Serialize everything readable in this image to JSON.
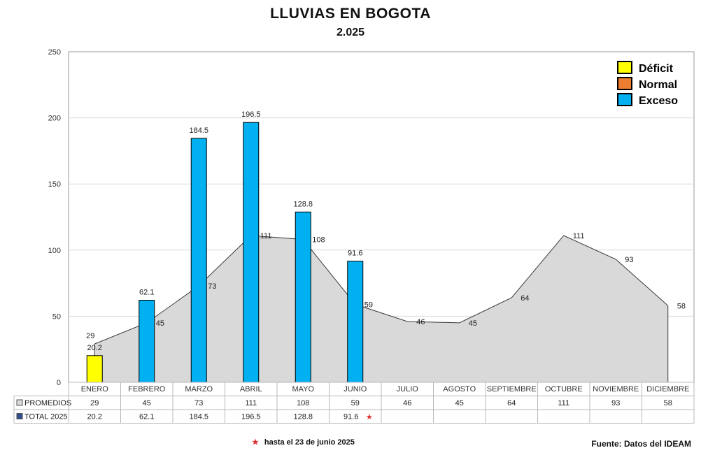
{
  "chart_data": {
    "type": "bar",
    "title": "LLUVIAS EN BOGOTA",
    "subtitle": "2.025",
    "categories": [
      "ENERO",
      "FEBRERO",
      "MARZO",
      "ABRIL",
      "MAYO",
      "JUNIO",
      "JULIO",
      "AGOSTO",
      "SEPTIEMBRE",
      "OCTUBRE",
      "NOVIEMBRE",
      "DICIEMBRE"
    ],
    "ylim": [
      0,
      250
    ],
    "yticks": [
      0,
      50,
      100,
      150,
      200,
      250
    ],
    "series": [
      {
        "name": "PROMEDIOS",
        "type": "area",
        "color": "#d9d9d9",
        "values": [
          29,
          45,
          73,
          111,
          108,
          59,
          46,
          45,
          64,
          111,
          93,
          58
        ]
      },
      {
        "name": "TOTAL 2025",
        "type": "bar",
        "values": [
          20.2,
          62.1,
          184.5,
          196.5,
          128.8,
          91.6,
          null,
          null,
          null,
          null,
          null,
          null
        ],
        "classes": [
          "Déficit",
          "Exceso",
          "Exceso",
          "Exceso",
          "Exceso",
          "Exceso",
          null,
          null,
          null,
          null,
          null,
          null
        ]
      }
    ],
    "legend": [
      {
        "label": "Déficit",
        "color": "#ffff00"
      },
      {
        "label": "Normal",
        "color": "#ed7d31"
      },
      {
        "label": "Exceso",
        "color": "#00b0f0"
      }
    ],
    "legend_position": "top-right",
    "table_rows": [
      "PROMEDIOS",
      "TOTAL 2025"
    ],
    "footnote_marker": "★",
    "footnote": "hasta el 23 de junio 2025",
    "source": "Fuente: Datos del IDEAM"
  }
}
